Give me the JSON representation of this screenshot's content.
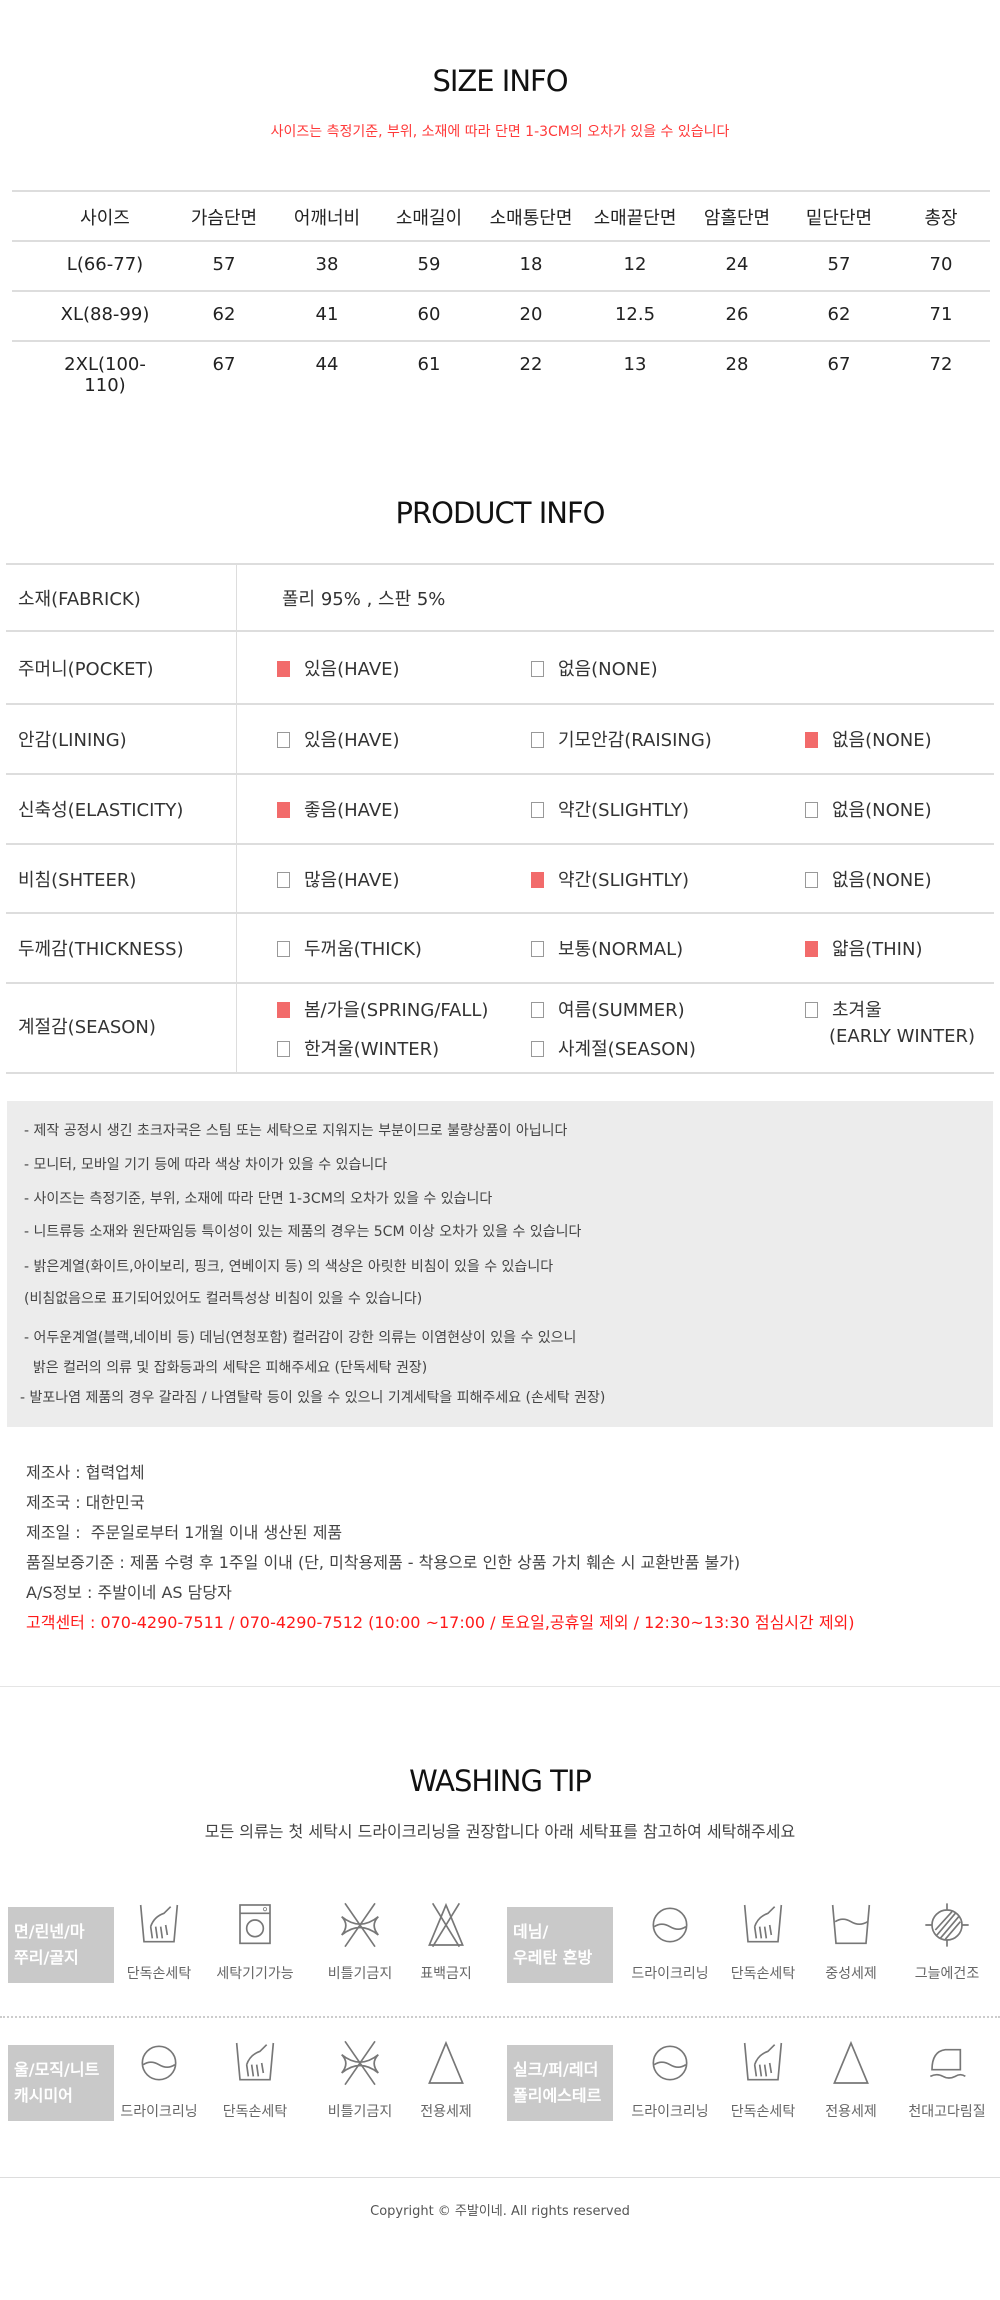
{
  "size_info": {
    "title": "SIZE INFO",
    "notice": "사이즈는 측정기준, 부위, 소재에 따라 단면 1-3CM의 오차가 있을 수 있습니다",
    "headers": [
      "사이즈",
      "가슴단면",
      "어깨너비",
      "소매길이",
      "소매통단면",
      "소매끝단면",
      "암홀단면",
      "밑단단면",
      "총장"
    ],
    "rows": [
      [
        "L(66-77)",
        "57",
        "38",
        "59",
        "18",
        "12",
        "24",
        "57",
        "70"
      ],
      [
        "XL(88-99)",
        "62",
        "41",
        "60",
        "20",
        "12.5",
        "26",
        "62",
        "71"
      ],
      [
        "2XL(100-110)",
        "67",
        "44",
        "61",
        "22",
        "13",
        "28",
        "67",
        "72"
      ]
    ]
  },
  "product_info": {
    "title": "PRODUCT INFO",
    "fabric_label": "소재(FABRICK)",
    "fabric_value": "폴리 95% , 스판 5%",
    "rows": [
      {
        "label": "주머니(POCKET)",
        "options": [
          {
            "text": "있음(HAVE)",
            "checked": true
          },
          {
            "text": "없음(NONE)",
            "checked": false
          }
        ]
      },
      {
        "label": "안감(LINING)",
        "options": [
          {
            "text": "있음(HAVE)",
            "checked": false
          },
          {
            "text": "기모안감(RAISING)",
            "checked": false
          },
          {
            "text": "없음(NONE)",
            "checked": true
          }
        ]
      },
      {
        "label": "신축성(ELASTICITY)",
        "options": [
          {
            "text": "좋음(HAVE)",
            "checked": true
          },
          {
            "text": "약간(SLIGHTLY)",
            "checked": false
          },
          {
            "text": "없음(NONE)",
            "checked": false
          }
        ]
      },
      {
        "label": "비침(SHTEER)",
        "options": [
          {
            "text": "많음(HAVE)",
            "checked": false
          },
          {
            "text": "약간(SLIGHTLY)",
            "checked": true
          },
          {
            "text": "없음(NONE)",
            "checked": false
          }
        ]
      },
      {
        "label": "두께감(THICKNESS)",
        "options": [
          {
            "text": "두꺼움(THICK)",
            "checked": false
          },
          {
            "text": "보통(NORMAL)",
            "checked": false
          },
          {
            "text": "얇음(THIN)",
            "checked": true
          }
        ]
      }
    ],
    "season": {
      "label": "계절감(SEASON)",
      "options": [
        {
          "text": "봄/가을(SPRING/FALL)",
          "checked": true
        },
        {
          "text": "여름(SUMMER)",
          "checked": false
        },
        {
          "text": "초겨울",
          "text2": "(EARLY WINTER)",
          "checked": false
        },
        {
          "text": "한겨울(WINTER)",
          "checked": false
        },
        {
          "text": "사계절(SEASON)",
          "checked": false
        }
      ]
    }
  },
  "notes": [
    "- 제작 공정시 생긴 초크자국은 스팀 또는 세탁으로 지워지는 부분이므로 불량상품이 아닙니다",
    "- 모니터, 모바일 기기 등에 따라 색상 차이가 있을 수 있습니다",
    "- 사이즈는 측정기준, 부위, 소재에 따라 단면 1-3CM의 오차가 있을 수 있습니다",
    "- 니트류등 소재와 원단짜임등 특이성이 있는 제품의 경우는 5CM 이상 오차가 있을 수 있습니다",
    "- 밝은계열(화이트,아이보리, 핑크, 연베이지 등) 의 색상은 아릿한 비침이 있을 수 있습니다",
    "(비침없음으로 표기되어있어도 컬러특성상 비침이 있을 수 있습니다)",
    "- 어두운계열(블랙,네이비 등) 데님(연청포함) 컬러감이 강한 의류는 이염현상이 있을 수 있으니",
    "  밝은 컬러의 의류 및 잡화등과의 세탁은 피해주세요 (단독세탁 권장)",
    "- 발포나염 제품의 경우 갈라짐 / 나염탈락 등이 있을 수 있으니 기계세탁을 피해주세요 (손세탁 권장)"
  ],
  "maker_info": [
    "제조사 : 협력업체",
    "제조국 : 대한민국",
    "제조일 :  주문일로부터 1개월 이내 생산된 제품",
    "품질보증기준 : 제품 수령 후 1주일 이내 (단, 미착용제품 - 착용으로 인한 상품 가치 훼손 시 교환반품 불가)",
    "A/S정보 : 주발이네 AS 담당자"
  ],
  "customer_center": "고객센터 : 070-4290-7511 / 070-4290-7512 (10:00 ~17:00 / 토요일,공휴일 제외 / 12:30~13:30 점심시간 제외)",
  "washing": {
    "title": "WASHING TIP",
    "subtitle": "모든 의류는 첫 세탁시 드라이크리닝을 권장합니다 아래 세탁표를 참고하여 세탁해주세요",
    "groups": [
      {
        "name1": "면/린넨/마",
        "name2": "쭈리/골지",
        "items": [
          {
            "icon": "hand-wash",
            "label": "단독손세탁"
          },
          {
            "icon": "washing-machine",
            "label": "세탁기기가능"
          },
          {
            "icon": "no-wring",
            "label": "비틀기금지"
          },
          {
            "icon": "no-bleach",
            "label": "표백금지"
          }
        ]
      },
      {
        "name1": "데님/",
        "name2": "우레탄 혼방",
        "items": [
          {
            "icon": "dry-clean",
            "label": "드라이크리닝"
          },
          {
            "icon": "hand-wash",
            "label": "단독손세탁"
          },
          {
            "icon": "neutral-detergent",
            "label": "중성세제"
          },
          {
            "icon": "shade-dry",
            "label": "그늘에건조"
          }
        ]
      },
      {
        "name1": "울/모직/니트",
        "name2": "캐시미어",
        "items": [
          {
            "icon": "dry-clean",
            "label": "드라이크리닝"
          },
          {
            "icon": "hand-wash",
            "label": "단독손세탁"
          },
          {
            "icon": "no-wring",
            "label": "비틀기금지"
          },
          {
            "icon": "triangle",
            "label": "전용세제"
          }
        ]
      },
      {
        "name1": "실크/퍼/레더",
        "name2": "폴리에스테르",
        "items": [
          {
            "icon": "dry-clean",
            "label": "드라이크리닝"
          },
          {
            "icon": "hand-wash",
            "label": "단독손세탁"
          },
          {
            "icon": "triangle",
            "label": "전용세제"
          },
          {
            "icon": "iron-cloth",
            "label": "천대고다림질"
          }
        ]
      }
    ]
  },
  "footer": {
    "copyright": "Copyright © 주발이네. All rights reserved"
  },
  "colors": {
    "accent": "#f26b6b",
    "notice_red": "#ff2a2a",
    "gray_box": "#c9c9c9",
    "notes_bg": "#ececec"
  }
}
